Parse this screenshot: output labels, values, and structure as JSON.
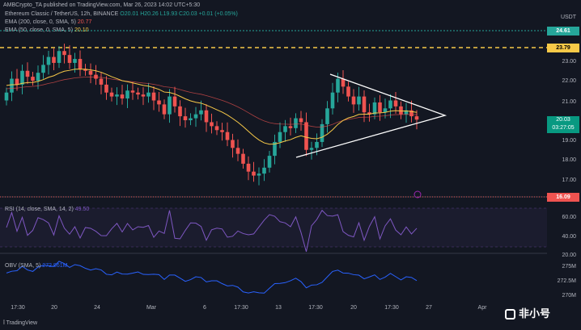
{
  "header": {
    "text": "AMBCrypto_TA published on TradingView.com, Mar 26, 2023 14:02 UTC+5:30"
  },
  "symbol": {
    "name": "Ethereum Classic / TetherUS, 12h, BINANCE",
    "ohlc": "O20.01 H20.26 L19.93 C20.03 +0.01 (+0.05%)"
  },
  "indicators": {
    "ema200": {
      "label": "EMA (200, close, 0, SMA, 5)",
      "value": "20.77",
      "color": "#ef5350"
    },
    "ema50": {
      "label": "EMA (50, close, 0, SMA, 5)",
      "value": "20.10",
      "color": "#f7c948"
    },
    "rsi": {
      "label": "RSI (14, close, SMA, 14, 2)",
      "value": "49.50"
    },
    "obv": {
      "label": "OBV (SMA, 5)",
      "value": "272.861M"
    }
  },
  "price_axis": {
    "currency": "USDT",
    "ticks": [
      "23.00",
      "22.00",
      "21.00",
      "20.00",
      "19.00",
      "18.00",
      "17.00"
    ],
    "levels": {
      "upper_level": "24.61",
      "resistance": "23.79",
      "support": "16.09"
    },
    "current_price": "20.03",
    "countdown": "03:27:05"
  },
  "rsi_axis": {
    "ticks": [
      "60.00",
      "40.00",
      "20.00"
    ]
  },
  "obv_axis": {
    "ticks": [
      "275M",
      "272.5M",
      "270M"
    ]
  },
  "time_axis": [
    "17:30",
    "20",
    "24",
    "Mar",
    "6",
    "17:30",
    "13",
    "17:30",
    "20",
    "17:30",
    "27",
    "Apr"
  ],
  "footer": {
    "brand": "TradingView"
  },
  "watermark": {
    "text": "非小号"
  },
  "colors": {
    "bg": "#131722",
    "up": "#26a69a",
    "down": "#ef5350",
    "ema50": "#f7c948",
    "rsi": "#7e57c2",
    "obv": "#2962ff"
  }
}
